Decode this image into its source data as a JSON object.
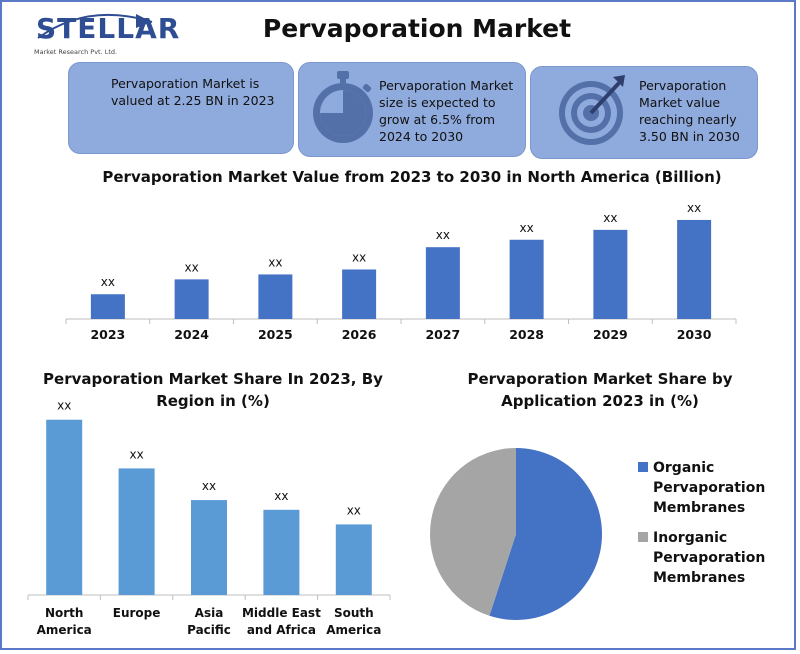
{
  "brand": {
    "name": "STELLAR",
    "subtitle": "Market Research Pvt. Ltd."
  },
  "title": "Pervaporation Market",
  "info_cards": [
    {
      "text": "Pervaporation Market is valued at 2.25 BN in 2023",
      "icon": "none"
    },
    {
      "text": "Pervaporation Market size is expected to grow at 6.5% from 2024 to 2030",
      "icon": "stopwatch-icon"
    },
    {
      "text": "Pervaporation Market value reaching nearly 3.50 BN in 2030",
      "icon": "target-icon"
    }
  ],
  "colors": {
    "card_bg": "#8faadc",
    "bar_dark": "#4472c4",
    "bar_light": "#5b9bd5",
    "pie_grey": "#a5a5a5",
    "frame": "#5b79c7"
  },
  "chart_data": [
    {
      "type": "bar",
      "title": "Pervaporation Market Value from 2023 to 2030 in North America (Billion)",
      "categories": [
        "2023",
        "2024",
        "2025",
        "2026",
        "2027",
        "2028",
        "2029",
        "2030"
      ],
      "values": [
        1.0,
        1.6,
        1.8,
        2.0,
        2.9,
        3.2,
        3.6,
        4.0
      ],
      "data_labels": [
        "xx",
        "xx",
        "xx",
        "xx",
        "xx",
        "xx",
        "xx",
        "xx"
      ],
      "color": "#4472c4",
      "ylim": [
        0,
        4.2
      ],
      "grid": false
    },
    {
      "type": "bar",
      "title": "Pervaporation Market Share In 2023, By Region in (%)",
      "categories": [
        "North America",
        "Europe",
        "Asia Pacific",
        "Middle East and Africa",
        "South America"
      ],
      "values": [
        36,
        26,
        19.5,
        17.5,
        14.5
      ],
      "data_labels": [
        "xx",
        "xx",
        "xx",
        "xx",
        "xx"
      ],
      "color": "#5b9bd5",
      "ylim": [
        0,
        38
      ],
      "grid": false
    },
    {
      "type": "pie",
      "title": "Pervaporation Market Share by Application 2023 in (%)",
      "categories": [
        "Organic Pervaporation Membranes",
        "Inorganic Pervaporation Membranes"
      ],
      "values": [
        55,
        45
      ],
      "colors": [
        "#4472c4",
        "#a5a5a5"
      ],
      "legend": "right"
    }
  ]
}
